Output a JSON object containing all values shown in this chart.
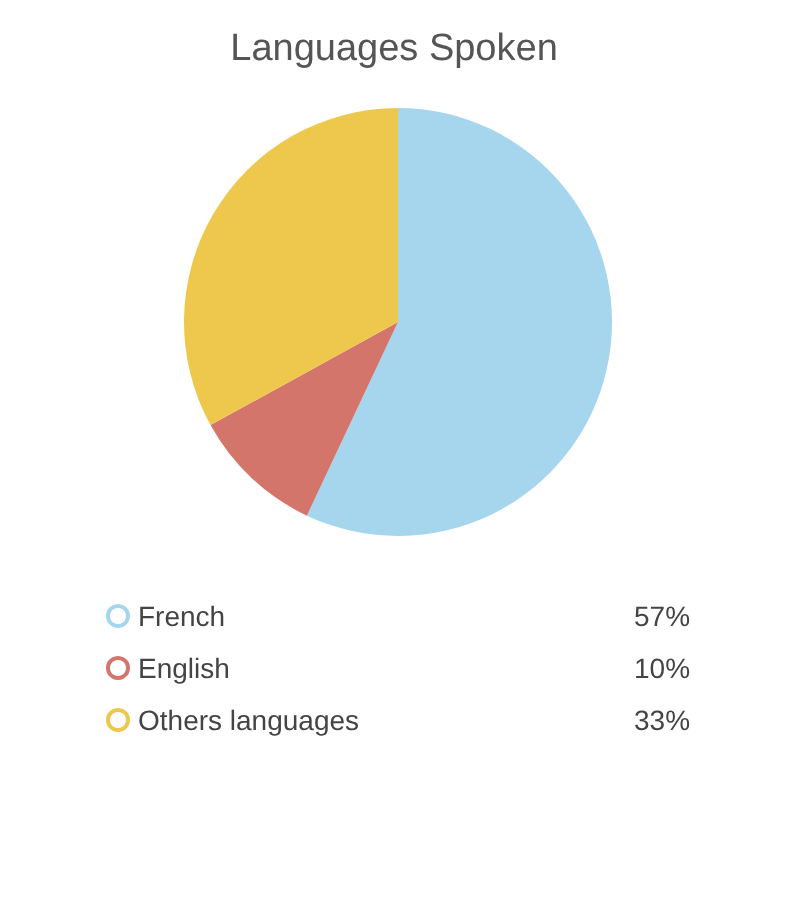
{
  "chart_data": {
    "type": "pie",
    "title": "Languages Spoken",
    "categories": [
      "French",
      "English",
      "Others languages"
    ],
    "values": [
      57,
      10,
      33
    ],
    "colors": [
      "#a6d6ee",
      "#d4756b",
      "#eec84c"
    ],
    "value_labels": [
      "57%",
      "10%",
      "33%"
    ],
    "legend": "bottom"
  }
}
